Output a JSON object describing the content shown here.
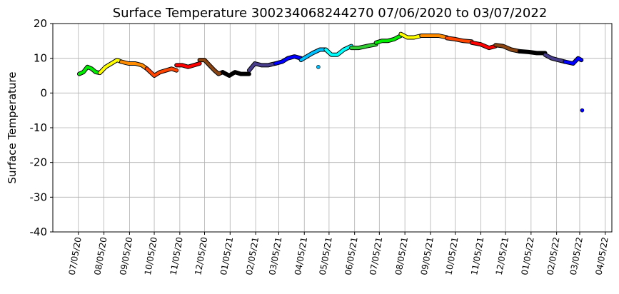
{
  "chart_data": {
    "type": "line",
    "title": "Surface Temperature 300234068244270  07/06/2020 to 03/07/2022",
    "y_label": "Surface Temperature",
    "xlim": [
      "2020-06-04",
      "2022-04-13"
    ],
    "ylim": [
      -40,
      20
    ],
    "yticks": [
      -40,
      -30,
      -20,
      -10,
      0,
      10,
      20
    ],
    "xticks": [
      {
        "value": "2020-07-05",
        "label": "07/05/20"
      },
      {
        "value": "2020-08-05",
        "label": "08/05/20"
      },
      {
        "value": "2020-09-05",
        "label": "09/05/20"
      },
      {
        "value": "2020-10-05",
        "label": "10/05/20"
      },
      {
        "value": "2020-11-05",
        "label": "11/05/20"
      },
      {
        "value": "2020-12-05",
        "label": "12/05/20"
      },
      {
        "value": "2021-01-05",
        "label": "01/05/21"
      },
      {
        "value": "2021-02-05",
        "label": "02/05/21"
      },
      {
        "value": "2021-03-05",
        "label": "03/05/21"
      },
      {
        "value": "2021-04-05",
        "label": "04/05/21"
      },
      {
        "value": "2021-05-05",
        "label": "05/05/21"
      },
      {
        "value": "2021-06-05",
        "label": "06/05/21"
      },
      {
        "value": "2021-07-05",
        "label": "07/05/21"
      },
      {
        "value": "2021-08-05",
        "label": "08/05/21"
      },
      {
        "value": "2021-09-05",
        "label": "09/05/21"
      },
      {
        "value": "2021-10-05",
        "label": "10/05/21"
      },
      {
        "value": "2021-11-05",
        "label": "11/05/21"
      },
      {
        "value": "2021-12-05",
        "label": "12/05/21"
      },
      {
        "value": "2022-01-05",
        "label": "01/05/22"
      },
      {
        "value": "2022-02-05",
        "label": "02/05/22"
      },
      {
        "value": "2022-03-05",
        "label": "03/05/22"
      },
      {
        "value": "2022-04-05",
        "label": "04/05/22"
      }
    ],
    "grid": true,
    "series": [
      {
        "color": "#00ee00",
        "x": [
          "2020-07-06",
          "2020-07-11",
          "2020-07-16",
          "2020-07-21",
          "2020-07-26",
          "2020-07-31"
        ],
        "values": [
          5.5,
          6,
          7.5,
          7,
          6,
          5.8
        ]
      },
      {
        "color": "#ffff00",
        "x": [
          "2020-07-31",
          "2020-08-07",
          "2020-08-14",
          "2020-08-21",
          "2020-08-26"
        ],
        "values": [
          5.8,
          7.5,
          8.5,
          9.5,
          9
        ]
      },
      {
        "color": "#ff8c00",
        "x": [
          "2020-08-26",
          "2020-09-04",
          "2020-09-12",
          "2020-09-20",
          "2020-09-26"
        ],
        "values": [
          9,
          8.5,
          8.5,
          8,
          7
        ]
      },
      {
        "color": "#ff4500",
        "x": [
          "2020-09-26",
          "2020-10-05",
          "2020-10-12",
          "2020-10-19",
          "2020-10-26",
          "2020-11-01"
        ],
        "values": [
          7,
          5,
          6,
          6.5,
          7,
          6.5
        ]
      },
      {
        "color": "#ff0000",
        "x": [
          "2020-11-01",
          "2020-11-08",
          "2020-11-15",
          "2020-11-22",
          "2020-11-29"
        ],
        "values": [
          8,
          8,
          7.5,
          8,
          8.5
        ]
      },
      {
        "color": "#8b4513",
        "x": [
          "2020-11-29",
          "2020-12-05",
          "2020-12-11",
          "2020-12-17",
          "2020-12-22",
          "2020-12-27"
        ],
        "values": [
          9.5,
          9.5,
          8,
          6.5,
          5.5,
          6
        ]
      },
      {
        "color": "#000000",
        "x": [
          "2020-12-27",
          "2021-01-04",
          "2021-01-11",
          "2021-01-18",
          "2021-01-28"
        ],
        "values": [
          6,
          5,
          6,
          5.5,
          5.5
        ]
      },
      {
        "color": "#483d8b",
        "x": [
          "2021-01-28",
          "2021-02-04",
          "2021-02-12",
          "2021-02-20",
          "2021-03-01"
        ],
        "values": [
          6.5,
          8.5,
          8,
          8,
          8.5
        ]
      },
      {
        "color": "#0000ff",
        "x": [
          "2021-03-01",
          "2021-03-09",
          "2021-03-16",
          "2021-03-24",
          "2021-04-01"
        ],
        "values": [
          8.5,
          9,
          10,
          10.5,
          10
        ]
      },
      {
        "color": "#00bfff",
        "x": [
          "2021-04-01",
          "2021-04-08",
          "2021-04-15",
          "2021-04-24",
          "2021-05-01"
        ],
        "values": [
          9.5,
          10.5,
          11.5,
          12.5,
          12.5
        ]
      },
      {
        "color": "#00bfff",
        "type": "scatter",
        "x": [
          "2021-04-22"
        ],
        "values": [
          7.5
        ]
      },
      {
        "color": "#00ffff",
        "x": [
          "2021-05-01",
          "2021-05-08",
          "2021-05-15",
          "2021-05-23",
          "2021-06-01"
        ],
        "values": [
          12.5,
          11,
          11,
          12.5,
          13.5
        ]
      },
      {
        "color": "#32cd32",
        "x": [
          "2021-06-01",
          "2021-06-10",
          "2021-06-20",
          "2021-07-01"
        ],
        "values": [
          13,
          13,
          13.5,
          14
        ]
      },
      {
        "color": "#00ee00",
        "x": [
          "2021-07-01",
          "2021-07-08",
          "2021-07-15",
          "2021-07-23",
          "2021-07-31"
        ],
        "values": [
          14.5,
          15,
          15,
          15.5,
          16.5
        ]
      },
      {
        "color": "#ffff00",
        "x": [
          "2021-07-31",
          "2021-08-08",
          "2021-08-16",
          "2021-08-25"
        ],
        "values": [
          17,
          16,
          16,
          16.5
        ]
      },
      {
        "color": "#ff8c00",
        "x": [
          "2021-08-25",
          "2021-09-05",
          "2021-09-15",
          "2021-09-25"
        ],
        "values": [
          16.5,
          16.5,
          16.5,
          16
        ]
      },
      {
        "color": "#ff4500",
        "x": [
          "2021-09-25",
          "2021-10-05",
          "2021-10-15",
          "2021-10-25"
        ],
        "values": [
          15.8,
          15.5,
          15,
          14.8
        ]
      },
      {
        "color": "#ff0000",
        "x": [
          "2021-10-25",
          "2021-11-05",
          "2021-11-15",
          "2021-11-23"
        ],
        "values": [
          14.5,
          14,
          13,
          13.5
        ]
      },
      {
        "color": "#8b4513",
        "x": [
          "2021-11-23",
          "2021-12-02",
          "2021-12-12",
          "2021-12-22"
        ],
        "values": [
          13.8,
          13.5,
          12.5,
          12
        ]
      },
      {
        "color": "#000000",
        "x": [
          "2021-12-22",
          "2022-01-02",
          "2022-01-12",
          "2022-01-22"
        ],
        "values": [
          12,
          11.8,
          11.5,
          11.5
        ]
      },
      {
        "color": "#483d8b",
        "x": [
          "2022-01-22",
          "2022-01-30",
          "2022-02-07",
          "2022-02-15"
        ],
        "values": [
          11,
          10,
          9.5,
          9
        ]
      },
      {
        "color": "#0000ff",
        "x": [
          "2022-02-15",
          "2022-02-25",
          "2022-03-03",
          "2022-03-07"
        ],
        "values": [
          9,
          8.5,
          10,
          9.5
        ]
      },
      {
        "color": "#0000ff",
        "type": "scatter",
        "x": [
          "2022-03-08"
        ],
        "values": [
          -5
        ]
      }
    ]
  }
}
